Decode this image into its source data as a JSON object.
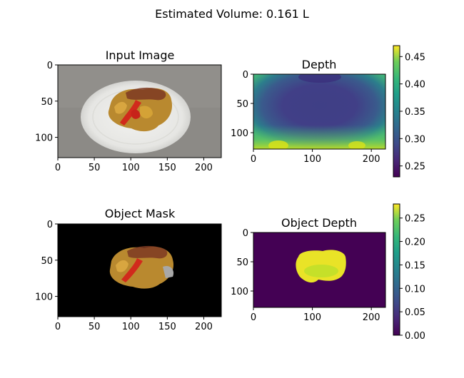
{
  "figure": {
    "suptitle": "Estimated Volume: 0.161 L"
  },
  "chart_data": [
    {
      "type": "heatmap",
      "title": "Input Image",
      "content": "photo of a plate with a food item",
      "xlim": [
        0,
        224
      ],
      "ylim": [
        128,
        0
      ],
      "xticks": [
        0,
        50,
        100,
        150,
        200
      ],
      "yticks": [
        0,
        50,
        100
      ],
      "colorbar": false,
      "colors": {
        "background": "#8c8a86",
        "plate": "#ececea",
        "food": "#b9892f",
        "sauce": "#d12a1c"
      }
    },
    {
      "type": "heatmap",
      "title": "Depth",
      "colormap": "viridis",
      "xlim": [
        0,
        224
      ],
      "ylim": [
        128,
        0
      ],
      "xticks": [
        0,
        100,
        200
      ],
      "yticks": [
        0,
        50,
        100
      ],
      "colorbar": true,
      "clim": [
        0.23,
        0.47
      ],
      "cbar_ticks": [
        0.25,
        0.3,
        0.35,
        0.4,
        0.45
      ],
      "cbar_tick_labels": [
        "0.25",
        "0.30",
        "0.35",
        "0.40",
        "0.45"
      ]
    },
    {
      "type": "heatmap",
      "title": "Object Mask",
      "content": "segmented food item on black background",
      "xlim": [
        0,
        224
      ],
      "ylim": [
        128,
        0
      ],
      "xticks": [
        0,
        50,
        100,
        150,
        200
      ],
      "yticks": [
        0,
        50,
        100
      ],
      "colorbar": false,
      "colors": {
        "background": "#000000",
        "food": "#b9892f",
        "sauce": "#d12a1c",
        "plate_edge": "#aaaaaa"
      }
    },
    {
      "type": "heatmap",
      "title": "Object Depth",
      "colormap": "viridis",
      "xlim": [
        0,
        224
      ],
      "ylim": [
        128,
        0
      ],
      "xticks": [
        0,
        100,
        200
      ],
      "yticks": [
        0,
        50,
        100
      ],
      "colorbar": true,
      "clim": [
        0.0,
        0.28
      ],
      "cbar_ticks": [
        0.0,
        0.05,
        0.1,
        0.15,
        0.2,
        0.25
      ],
      "cbar_tick_labels": [
        "0.00",
        "0.05",
        "0.10",
        "0.15",
        "0.20",
        "0.25"
      ]
    }
  ]
}
